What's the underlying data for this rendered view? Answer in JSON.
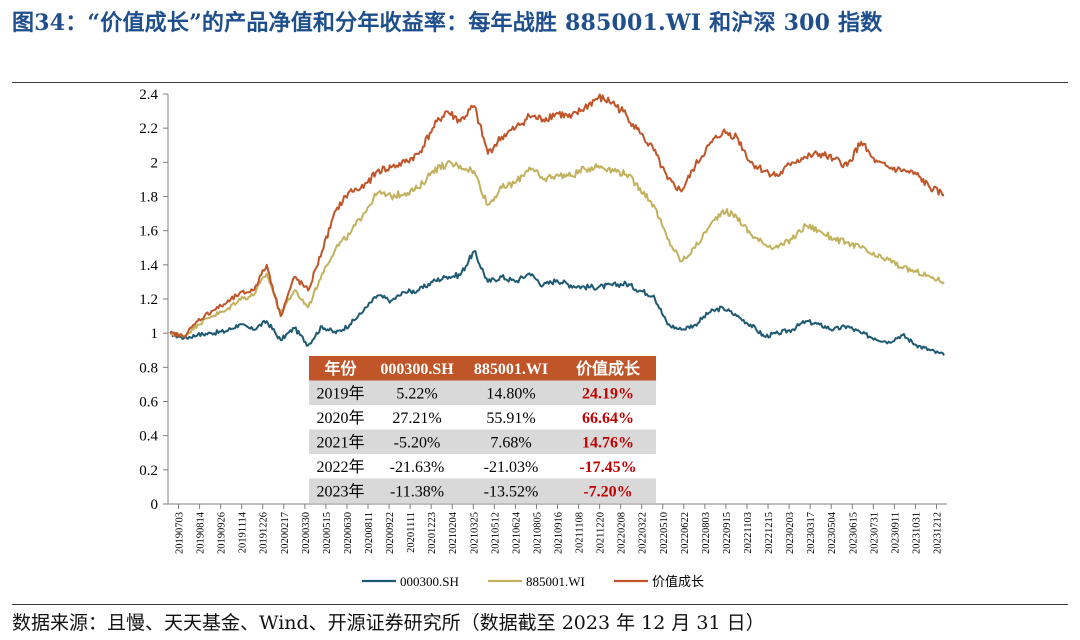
{
  "title": "图34：“价值成长”的产品净值和分年收益率：每年战胜 885001.WI 和沪深 300 指数",
  "source": "数据来源：且慢、天天基金、Wind、开源证券研究所（数据截至 2023 年 12 月 31 日）",
  "chart_data": {
    "type": "line",
    "ylim": [
      0,
      2.4
    ],
    "yticks": [
      "0",
      "0.2",
      "0.4",
      "0.6",
      "0.8",
      "1",
      "1.2",
      "1.4",
      "1.6",
      "1.8",
      "2",
      "2.2",
      "2.4"
    ],
    "xticks": [
      "20190703",
      "20190814",
      "20190926",
      "20191114",
      "20191226",
      "20200217",
      "20200330",
      "20200515",
      "20200630",
      "20200811",
      "20200922",
      "20201111",
      "20201223",
      "20210204",
      "20210325",
      "20210512",
      "20210624",
      "20210805",
      "20210916",
      "20211108",
      "20211220",
      "20220208",
      "20220322",
      "20220510",
      "20220622",
      "20220803",
      "20220915",
      "20221103",
      "20221215",
      "20230203",
      "20230317",
      "20230504",
      "20230615",
      "20230731",
      "20230911",
      "20231031",
      "20231212"
    ],
    "grid": false,
    "legend_position": "bottom",
    "series": [
      {
        "name": "000300.SH",
        "color": "#1f5a73",
        "values": [
          1.0,
          0.97,
          0.99,
          1.0,
          1.01,
          1.05,
          1.02,
          1.07,
          0.96,
          1.03,
          0.93,
          1.04,
          1.0,
          1.05,
          1.13,
          1.22,
          1.19,
          1.24,
          1.25,
          1.3,
          1.33,
          1.34,
          1.48,
          1.3,
          1.33,
          1.3,
          1.35,
          1.28,
          1.31,
          1.28,
          1.27,
          1.27,
          1.28,
          1.29,
          1.25,
          1.22,
          1.05,
          1.02,
          1.05,
          1.12,
          1.15,
          1.1,
          1.05,
          0.98,
          1.0,
          1.02,
          1.07,
          1.05,
          1.02,
          1.04,
          1.0,
          0.97,
          0.95,
          0.99,
          0.93,
          0.9,
          0.87
        ]
      },
      {
        "name": "885001.WI",
        "color": "#c2b25e",
        "values": [
          1.0,
          0.98,
          1.05,
          1.1,
          1.13,
          1.2,
          1.22,
          1.35,
          1.12,
          1.25,
          1.15,
          1.35,
          1.5,
          1.58,
          1.7,
          1.82,
          1.8,
          1.82,
          1.85,
          1.95,
          1.99,
          1.98,
          1.95,
          1.75,
          1.85,
          1.88,
          1.97,
          1.9,
          1.93,
          1.92,
          1.96,
          1.98,
          1.96,
          1.93,
          1.85,
          1.75,
          1.55,
          1.42,
          1.5,
          1.62,
          1.72,
          1.68,
          1.58,
          1.52,
          1.5,
          1.55,
          1.63,
          1.6,
          1.55,
          1.53,
          1.5,
          1.45,
          1.43,
          1.38,
          1.36,
          1.33,
          1.3
        ]
      },
      {
        "name": "价值成长",
        "color": "#c0552a",
        "values": [
          1.0,
          0.98,
          1.07,
          1.13,
          1.17,
          1.23,
          1.25,
          1.4,
          1.1,
          1.33,
          1.25,
          1.48,
          1.72,
          1.83,
          1.85,
          1.95,
          1.97,
          2.0,
          2.05,
          2.2,
          2.3,
          2.24,
          2.33,
          2.05,
          2.15,
          2.2,
          2.27,
          2.25,
          2.29,
          2.26,
          2.32,
          2.38,
          2.35,
          2.28,
          2.17,
          2.07,
          1.9,
          1.83,
          1.98,
          2.1,
          2.18,
          2.15,
          2.0,
          1.95,
          1.92,
          2.0,
          2.03,
          2.05,
          2.02,
          1.98,
          2.12,
          2.0,
          1.97,
          1.95,
          1.93,
          1.85,
          1.81
        ]
      }
    ]
  },
  "table": {
    "header": [
      "年份",
      "000300.SH",
      "885001.WI",
      "价值成长"
    ],
    "rows": [
      [
        "2019年",
        "5.22%",
        "14.80%",
        "24.19%"
      ],
      [
        "2020年",
        "27.21%",
        "55.91%",
        "66.64%"
      ],
      [
        "2021年",
        "-5.20%",
        "7.68%",
        "14.76%"
      ],
      [
        "2022年",
        "-21.63%",
        "-21.03%",
        "-17.45%"
      ],
      [
        "2023年",
        "-11.38%",
        "-13.52%",
        "-7.20%"
      ]
    ],
    "header_bg": "#c0552a",
    "shaded_row_bg": "#d9d9d9",
    "highlight_color": "#c00000"
  }
}
